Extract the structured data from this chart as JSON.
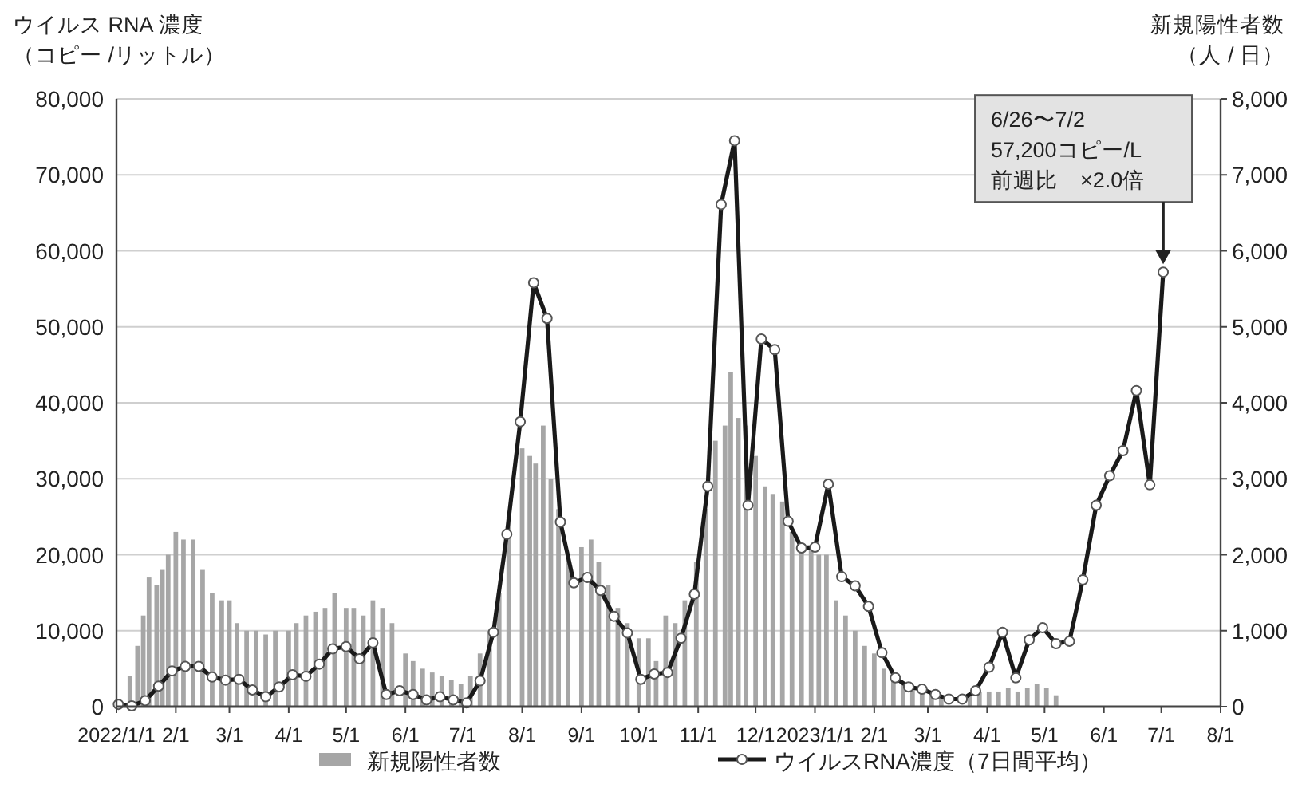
{
  "chart_data": {
    "type": "line",
    "ylabel": "ウイルス RNA 濃度（コピー /リットル）",
    "y2label": "新規陽性者数（人 / 日）",
    "xlim": [
      "2022-01-01",
      "2023-08-01"
    ],
    "xticks": [
      {
        "value": "2022-01-01",
        "label": "2022/1/1"
      },
      {
        "value": "2022-02-01",
        "label": "2/1"
      },
      {
        "value": "2022-03-01",
        "label": "3/1"
      },
      {
        "value": "2022-04-01",
        "label": "4/1"
      },
      {
        "value": "2022-05-01",
        "label": "5/1"
      },
      {
        "value": "2022-06-01",
        "label": "6/1"
      },
      {
        "value": "2022-07-01",
        "label": "7/1"
      },
      {
        "value": "2022-08-01",
        "label": "8/1"
      },
      {
        "value": "2022-09-01",
        "label": "9/1"
      },
      {
        "value": "2022-10-01",
        "label": "10/1"
      },
      {
        "value": "2022-11-01",
        "label": "11/1"
      },
      {
        "value": "2022-12-01",
        "label": "12/1"
      },
      {
        "value": "2023-01-01",
        "label": "2023/1/1"
      },
      {
        "value": "2023-02-01",
        "label": "2/1"
      },
      {
        "value": "2023-03-01",
        "label": "3/1"
      },
      {
        "value": "2023-04-01",
        "label": "4/1"
      },
      {
        "value": "2023-05-01",
        "label": "5/1"
      },
      {
        "value": "2023-06-01",
        "label": "6/1"
      },
      {
        "value": "2023-07-01",
        "label": "7/1"
      },
      {
        "value": "2023-08-01",
        "label": "8/1"
      }
    ],
    "ylim": [
      0,
      80000
    ],
    "yticks": [
      0,
      {
        "value": 10000,
        "label": "10,000"
      },
      {
        "value": 20000,
        "label": "20,000"
      },
      {
        "value": 30000,
        "label": "30,000"
      },
      {
        "value": 40000,
        "label": "40,000"
      },
      {
        "value": 50000,
        "label": "50,000"
      },
      {
        "value": 60000,
        "label": "60,000"
      },
      {
        "value": 70000,
        "label": "70,000"
      },
      {
        "value": 80000,
        "label": "80,000"
      }
    ],
    "y2lim": [
      0,
      8000
    ],
    "y2ticks": [
      0,
      {
        "value": 1000,
        "label": "1,000"
      },
      {
        "value": 2000,
        "label": "2,000"
      },
      {
        "value": 3000,
        "label": "3,000"
      },
      {
        "value": 4000,
        "label": "4,000"
      },
      {
        "value": 5000,
        "label": "5,000"
      },
      {
        "value": 6000,
        "label": "6,000"
      },
      {
        "value": 7000,
        "label": "7,000"
      },
      {
        "value": 8000,
        "label": "8,000"
      }
    ],
    "grid": "y",
    "legend": "bottom",
    "series": [
      {
        "name": "新規陽性者数",
        "type": "bar",
        "axis": "y2",
        "color": "#a6a6a6",
        "x": [
          "2022-01-08",
          "2022-01-12",
          "2022-01-15",
          "2022-01-18",
          "2022-01-22",
          "2022-01-25",
          "2022-01-28",
          "2022-02-01",
          "2022-02-05",
          "2022-02-10",
          "2022-02-15",
          "2022-02-20",
          "2022-02-25",
          "2022-03-01",
          "2022-03-05",
          "2022-03-10",
          "2022-03-15",
          "2022-03-20",
          "2022-03-25",
          "2022-04-01",
          "2022-04-05",
          "2022-04-10",
          "2022-04-15",
          "2022-04-20",
          "2022-04-25",
          "2022-05-01",
          "2022-05-05",
          "2022-05-10",
          "2022-05-15",
          "2022-05-20",
          "2022-05-25",
          "2022-06-01",
          "2022-06-05",
          "2022-06-10",
          "2022-06-15",
          "2022-06-20",
          "2022-06-25",
          "2022-06-30",
          "2022-07-05",
          "2022-07-10",
          "2022-07-15",
          "2022-07-20",
          "2022-07-25",
          "2022-08-01",
          "2022-08-05",
          "2022-08-08",
          "2022-08-12",
          "2022-08-16",
          "2022-08-20",
          "2022-08-25",
          "2022-09-01",
          "2022-09-06",
          "2022-09-10",
          "2022-09-15",
          "2022-09-20",
          "2022-09-25",
          "2022-10-01",
          "2022-10-06",
          "2022-10-10",
          "2022-10-15",
          "2022-10-20",
          "2022-10-25",
          "2022-10-31",
          "2022-11-05",
          "2022-11-10",
          "2022-11-15",
          "2022-11-18",
          "2022-11-22",
          "2022-11-26",
          "2022-12-01",
          "2022-12-06",
          "2022-12-10",
          "2022-12-15",
          "2022-12-20",
          "2022-12-25",
          "2022-12-30",
          "2023-01-03",
          "2023-01-07",
          "2023-01-12",
          "2023-01-17",
          "2023-01-22",
          "2023-01-27",
          "2023-02-01",
          "2023-02-06",
          "2023-02-11",
          "2023-02-16",
          "2023-02-21",
          "2023-02-26",
          "2023-03-03",
          "2023-03-08",
          "2023-03-23",
          "2023-03-28",
          "2023-04-02",
          "2023-04-07",
          "2023-04-12",
          "2023-04-17",
          "2023-04-22",
          "2023-04-27",
          "2023-05-02",
          "2023-05-07"
        ],
        "values": [
          400,
          800,
          1200,
          1700,
          1600,
          1800,
          2000,
          2300,
          2200,
          2200,
          1800,
          1500,
          1400,
          1400,
          1100,
          1000,
          1000,
          950,
          1000,
          1000,
          1100,
          1200,
          1250,
          1300,
          1500,
          1300,
          1300,
          1200,
          1400,
          1300,
          1100,
          700,
          600,
          500,
          450,
          400,
          350,
          300,
          400,
          700,
          1000,
          1500,
          2500,
          3400,
          3300,
          3200,
          3700,
          3000,
          2600,
          2000,
          2100,
          2200,
          1900,
          1600,
          1300,
          1100,
          900,
          900,
          600,
          1200,
          1100,
          1400,
          1900,
          2600,
          3500,
          3700,
          4400,
          3800,
          3700,
          3300,
          2900,
          2800,
          2700,
          2300,
          2100,
          2100,
          2000,
          2000,
          1400,
          1200,
          1000,
          800,
          700,
          500,
          400,
          300,
          250,
          200,
          200,
          150,
          150,
          200,
          200,
          200,
          250,
          200,
          250,
          300,
          250,
          150
        ]
      },
      {
        "name": "ウイルスRNA濃度（7日間平均）",
        "axis": "y",
        "color": "#1a1a1a",
        "marker": "circle",
        "x": [
          "2022-01-02",
          "2022-01-09",
          "2022-01-16",
          "2022-01-23",
          "2022-01-30",
          "2022-02-06",
          "2022-02-13",
          "2022-02-20",
          "2022-02-27",
          "2022-03-06",
          "2022-03-13",
          "2022-03-20",
          "2022-03-27",
          "2022-04-03",
          "2022-04-10",
          "2022-04-17",
          "2022-04-24",
          "2022-05-01",
          "2022-05-08",
          "2022-05-15",
          "2022-05-22",
          "2022-05-29",
          "2022-06-05",
          "2022-06-12",
          "2022-06-19",
          "2022-06-26",
          "2022-07-03",
          "2022-07-10",
          "2022-07-17",
          "2022-07-24",
          "2022-07-31",
          "2022-08-07",
          "2022-08-14",
          "2022-08-21",
          "2022-08-28",
          "2022-09-04",
          "2022-09-11",
          "2022-09-18",
          "2022-09-25",
          "2022-10-02",
          "2022-10-09",
          "2022-10-16",
          "2022-10-23",
          "2022-10-30",
          "2022-11-06",
          "2022-11-13",
          "2022-11-20",
          "2022-11-27",
          "2022-12-04",
          "2022-12-11",
          "2022-12-18",
          "2022-12-25",
          "2023-01-01",
          "2023-01-08",
          "2023-01-15",
          "2023-01-22",
          "2023-01-29",
          "2023-02-05",
          "2023-02-12",
          "2023-02-19",
          "2023-02-26",
          "2023-03-05",
          "2023-03-12",
          "2023-03-19",
          "2023-03-26",
          "2023-04-02",
          "2023-04-09",
          "2023-04-16",
          "2023-04-23",
          "2023-04-30",
          "2023-05-07",
          "2023-05-14",
          "2023-05-21",
          "2023-05-28",
          "2023-06-04",
          "2023-06-11",
          "2023-06-18",
          "2023-06-25",
          "2023-07-02"
        ],
        "values": [
          300,
          100,
          800,
          2700,
          4700,
          5300,
          5300,
          3900,
          3500,
          3600,
          2200,
          1300,
          2600,
          4200,
          4000,
          5600,
          7600,
          7900,
          6300,
          8400,
          1600,
          2100,
          1600,
          900,
          1300,
          900,
          500,
          3400,
          9800,
          22700,
          37500,
          55800,
          51100,
          24300,
          16300,
          17000,
          15300,
          11900,
          9700,
          3600,
          4300,
          4500,
          9000,
          14800,
          29000,
          66100,
          74500,
          26500,
          48400,
          47000,
          24400,
          20900,
          21000,
          29300,
          17100,
          15900,
          13200,
          7100,
          3800,
          2600,
          2300,
          1600,
          1000,
          1000,
          2100,
          5200,
          9800,
          3800,
          8800,
          10400,
          8300,
          8600,
          16700,
          26500,
          30400,
          33700,
          41600,
          29200,
          57200
        ]
      }
    ],
    "annotations": [
      "6/26〜7/2\n57,200コピー/L\n前週比　×2.0倍"
    ]
  }
}
